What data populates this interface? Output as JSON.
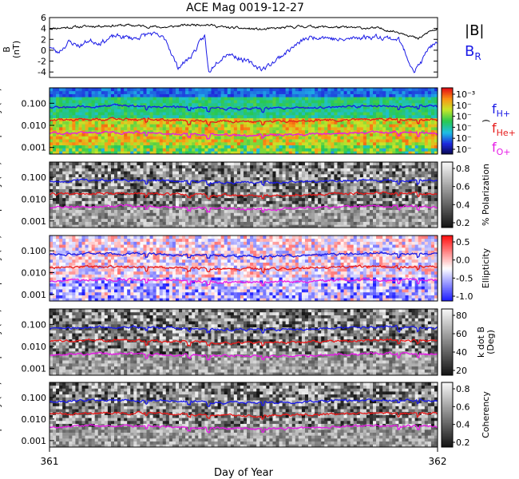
{
  "title": "ACE Mag 0019-12-27",
  "xlabel": "Day of Year",
  "x_ticks": [
    "361",
    "362"
  ],
  "chart_data": [
    {
      "type": "line",
      "name": "magnetic-field",
      "ylabel_lines": [
        "B",
        "(nT)"
      ],
      "yticks": [
        "6",
        "4",
        "2",
        "0",
        "-2",
        "-4"
      ],
      "ylim": [
        -5,
        6
      ],
      "xlim": [
        361,
        362
      ],
      "series": [
        {
          "name": "|B|",
          "color": "#000000",
          "mean": 4.1,
          "noise": 0.45,
          "seed": 11
        },
        {
          "name": "B",
          "sub": "R",
          "color": "#1a1ae6",
          "mean": 1.4,
          "noise": 0.9,
          "seed": 23
        }
      ],
      "br_anchors": [
        [
          361.0,
          0.8
        ],
        [
          361.02,
          -0.5
        ],
        [
          361.05,
          1.5
        ],
        [
          361.08,
          0.8
        ],
        [
          361.1,
          1.8
        ],
        [
          361.13,
          1.4
        ],
        [
          361.17,
          2.6
        ],
        [
          361.22,
          2.2
        ],
        [
          361.26,
          3.1
        ],
        [
          361.3,
          2.0
        ],
        [
          361.33,
          -3.2
        ],
        [
          361.36,
          -1.5
        ],
        [
          361.38,
          0.5
        ],
        [
          361.4,
          2.7
        ],
        [
          361.41,
          -4.2
        ],
        [
          361.43,
          -2.0
        ],
        [
          361.46,
          -0.5
        ],
        [
          361.5,
          -1.8
        ],
        [
          361.55,
          -3.5
        ],
        [
          361.58,
          -2.0
        ],
        [
          361.62,
          0.2
        ],
        [
          361.66,
          2.1
        ],
        [
          361.7,
          2.6
        ],
        [
          361.75,
          1.8
        ],
        [
          361.8,
          2.4
        ],
        [
          361.85,
          2.5
        ],
        [
          361.9,
          2.0
        ],
        [
          361.92,
          -1.0
        ],
        [
          361.94,
          -3.8
        ],
        [
          361.96,
          -2.0
        ],
        [
          361.98,
          0.8
        ],
        [
          362.0,
          1.0
        ]
      ],
      "bmag_anchors": [
        [
          361.0,
          4.0
        ],
        [
          361.1,
          4.4
        ],
        [
          361.2,
          4.6
        ],
        [
          361.3,
          4.2
        ],
        [
          361.35,
          4.6
        ],
        [
          361.4,
          4.8
        ],
        [
          361.45,
          4.2
        ],
        [
          361.55,
          3.8
        ],
        [
          361.65,
          4.4
        ],
        [
          361.75,
          4.2
        ],
        [
          361.85,
          4.0
        ],
        [
          361.92,
          3.0
        ],
        [
          361.95,
          2.0
        ],
        [
          361.98,
          3.5
        ],
        [
          362.0,
          3.8
        ]
      ]
    },
    {
      "type": "heatmap",
      "name": "power-spectrum",
      "ylabel": "Frequency (Hz)",
      "yticks": [
        "0.100",
        "0.010",
        "0.001"
      ],
      "ylim_log": [
        0.0005,
        0.5
      ],
      "colorscale": "rainbow",
      "colorbar_ticks": [
        "10⁻³",
        "10⁻",
        "10⁻",
        "10⁻",
        "10⁻",
        "10⁻"
      ],
      "colorbar_label": ")"
    },
    {
      "type": "heatmap",
      "name": "polarization",
      "ylabel": "Frequency (Hz)",
      "yticks": [
        "0.100",
        "0.010",
        "0.001"
      ],
      "ylim_log": [
        0.0005,
        0.5
      ],
      "colorscale": "gray",
      "colorbar_ticks": [
        "0.8",
        "0.6",
        "0.4",
        "0.2"
      ],
      "colorbar_label": "% Polarization"
    },
    {
      "type": "heatmap",
      "name": "ellipticity",
      "ylabel": "Frequency (Hz)",
      "yticks": [
        "0.100",
        "0.010",
        "0.001"
      ],
      "ylim_log": [
        0.0005,
        0.5
      ],
      "colorscale": "bwr",
      "colorbar_ticks": [
        "0.5",
        "0.0",
        "-0.5",
        "-1.0"
      ],
      "colorbar_label": "Ellipticity"
    },
    {
      "type": "heatmap",
      "name": "k-dot-b",
      "ylabel": "Frequency (Hz)",
      "yticks": [
        "0.100",
        "0.010",
        "0.001"
      ],
      "ylim_log": [
        0.0005,
        0.5
      ],
      "colorscale": "gray",
      "colorbar_ticks": [
        "80",
        "60",
        "40",
        "20"
      ],
      "colorbar_label_lines": [
        "k dot B",
        "(Deg)"
      ]
    },
    {
      "type": "heatmap",
      "name": "coherency",
      "ylabel": "Frequency (Hz)",
      "yticks": [
        "0.100",
        "0.010",
        "0.001"
      ],
      "ylim_log": [
        0.0005,
        0.5
      ],
      "colorscale": "gray",
      "colorbar_ticks": [
        "0.8",
        "0.6",
        "0.4",
        "0.2"
      ],
      "colorbar_label": "Coherency"
    }
  ],
  "gyro_lines": [
    {
      "label": "f",
      "sub": "H+",
      "color": "#1a1ae6",
      "freq": 0.065
    },
    {
      "label": "f",
      "sub": "He+",
      "color": "#e61a1a",
      "freq": 0.0165
    },
    {
      "label": "f",
      "sub": "O+",
      "color": "#e61ae6",
      "freq": 0.0041
    }
  ],
  "legend_top": [
    {
      "label": "|B|",
      "color": "#000000"
    },
    {
      "label": "B",
      "sub": "R",
      "color": "#1a1ae6"
    }
  ]
}
